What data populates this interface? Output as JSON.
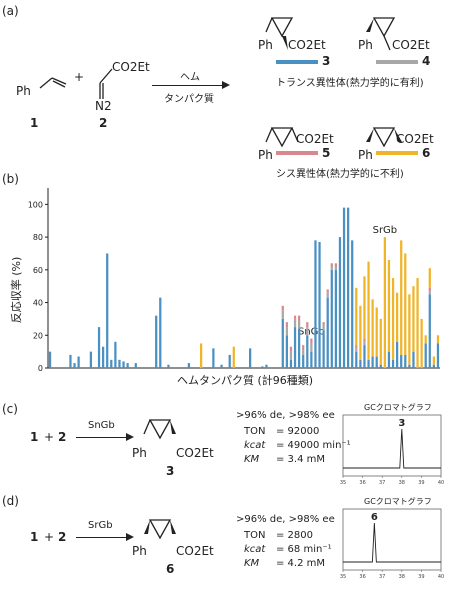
{
  "panels": {
    "a": "(a)",
    "b": "(b)",
    "c": "(c)",
    "d": "(d)"
  },
  "scheme": {
    "styrene_label": "Ph",
    "plus": "+",
    "diazo_top": "CO2Et",
    "diazo_n": "N2",
    "reactant1_num": "1",
    "reactant2_num": "2",
    "arrow_top": "ヘム",
    "arrow_bottom": "タンパク質",
    "products": [
      {
        "ph": "Ph",
        "ester": "CO2Et",
        "num": "3",
        "color": "#4a90c2"
      },
      {
        "ph": "Ph",
        "ester": "CO2Et",
        "num": "4",
        "color": "#a8a8a8"
      },
      {
        "ph": "Ph",
        "ester": "CO2Et",
        "num": "5",
        "color": "#d9898d"
      },
      {
        "ph": "Ph",
        "ester": "CO2Et",
        "num": "6",
        "color": "#f0b428"
      }
    ],
    "trans_label": "トランス異性体(熱力学的に有利)",
    "cis_label": "シス異性体(熱力学的に不利)"
  },
  "chart_data": {
    "type": "bar",
    "stacked": true,
    "ylabel": "反応収率 (%)",
    "xlabel": "ヘムタンパク質 (計96種類)",
    "ylim": [
      0,
      110
    ],
    "yticks": [
      0,
      20,
      40,
      60,
      80,
      100
    ],
    "annotations": [
      {
        "text": "SnGb",
        "index": 64
      },
      {
        "text": "SrGb",
        "index": 82
      }
    ],
    "series": [
      {
        "color": "#4a90c2",
        "values": [
          10,
          0,
          0,
          0,
          0,
          8,
          3,
          7,
          0,
          0,
          10,
          0,
          25,
          13,
          70,
          5,
          16,
          5,
          4,
          3,
          0,
          3,
          0,
          0,
          0,
          0,
          32,
          43,
          0,
          2,
          0,
          0,
          0,
          0,
          3,
          0,
          0,
          0,
          0,
          0,
          12,
          0,
          2,
          0,
          8,
          0,
          0,
          0,
          0,
          12,
          0,
          0,
          1,
          2,
          0,
          0,
          0,
          30,
          20,
          5,
          25,
          24,
          8,
          20,
          10,
          78,
          77,
          23,
          43,
          60,
          60,
          80,
          98,
          98,
          78,
          10,
          5,
          14,
          5,
          7,
          7,
          2,
          0,
          10,
          5,
          16,
          8,
          8,
          2,
          10,
          0,
          0,
          15,
          45,
          2,
          15
        ]
      },
      {
        "color": "#a8a8a8",
        "values": [
          0,
          0,
          0,
          0,
          0,
          0,
          0,
          0,
          0,
          0,
          0,
          0,
          0,
          0,
          0,
          0,
          0,
          0,
          0,
          0,
          0,
          0,
          0,
          0,
          0,
          0,
          0,
          0,
          0,
          0,
          0,
          0,
          0,
          0,
          0,
          0,
          0,
          0,
          0,
          0,
          0,
          0,
          0,
          0,
          0,
          0,
          0,
          0,
          0,
          0,
          0,
          0,
          0,
          0,
          0,
          0,
          0,
          5,
          5,
          5,
          5,
          5,
          3,
          5,
          5,
          0,
          0,
          3,
          3,
          2,
          2,
          0,
          0,
          0,
          0,
          2,
          0,
          2,
          0,
          0,
          0,
          0,
          0,
          0,
          0,
          0,
          0,
          0,
          0,
          0,
          0,
          0,
          0,
          2,
          0,
          0
        ]
      },
      {
        "color": "#d9898d",
        "values": [
          0,
          0,
          0,
          0,
          0,
          0,
          0,
          0,
          0,
          0,
          0,
          0,
          0,
          0,
          0,
          0,
          0,
          0,
          0,
          0,
          0,
          0,
          0,
          0,
          0,
          0,
          0,
          0,
          0,
          0,
          0,
          0,
          0,
          0,
          0,
          0,
          0,
          0,
          0,
          0,
          0,
          0,
          0,
          0,
          0,
          0,
          0,
          0,
          0,
          0,
          0,
          0,
          0,
          0,
          0,
          0,
          0,
          3,
          3,
          3,
          2,
          3,
          3,
          3,
          3,
          0,
          0,
          2,
          2,
          2,
          2,
          0,
          0,
          0,
          0,
          2,
          0,
          2,
          0,
          0,
          0,
          0,
          0,
          0,
          0,
          0,
          0,
          0,
          0,
          0,
          0,
          0,
          0,
          2,
          0,
          0
        ]
      },
      {
        "color": "#f0b428",
        "values": [
          0,
          0,
          0,
          0,
          0,
          0,
          0,
          0,
          0,
          0,
          0,
          0,
          0,
          0,
          0,
          0,
          0,
          0,
          0,
          0,
          0,
          0,
          0,
          0,
          0,
          0,
          0,
          0,
          0,
          0,
          0,
          0,
          0,
          0,
          0,
          0,
          0,
          15,
          0,
          0,
          0,
          0,
          0,
          0,
          0,
          13,
          0,
          0,
          0,
          0,
          0,
          0,
          0,
          0,
          0,
          0,
          0,
          0,
          0,
          0,
          0,
          0,
          0,
          0,
          0,
          0,
          0,
          0,
          0,
          0,
          0,
          0,
          0,
          0,
          0,
          35,
          33,
          38,
          60,
          35,
          30,
          28,
          80,
          56,
          50,
          30,
          70,
          62,
          43,
          40,
          55,
          30,
          5,
          12,
          5,
          5
        ]
      }
    ]
  },
  "panel_c": {
    "r1": "1",
    "plus": "+",
    "r2": "2",
    "enzyme": "SnGb",
    "ph": "Ph",
    "ester": "CO2Et",
    "product_num": "3",
    "selectivity": ">96% de, >98% ee",
    "ton_label": "TON",
    "ton_value": "= 92000",
    "kcat_label": "kcat",
    "kcat_value": "= 49000 min⁻¹",
    "km_label": "KM",
    "km_value": "= 3.4 mM",
    "gc_title": "GCクロマトグラフ",
    "gc_peak_label": "3",
    "gc_ticks": [
      "35",
      "36",
      "37",
      "38",
      "39",
      "40"
    ],
    "gc_peak_time": 38.0
  },
  "panel_d": {
    "r1": "1",
    "plus": "+",
    "r2": "2",
    "enzyme": "SrGb",
    "ph": "Ph",
    "ester": "CO2Et",
    "product_num": "6",
    "selectivity": ">96% de, >98% ee",
    "ton_label": "TON",
    "ton_value": "= 2800",
    "kcat_label": "kcat",
    "kcat_value": "= 68 min⁻¹",
    "km_label": "KM",
    "km_value": "= 4.2 mM",
    "gc_title": "GCクロマトグラフ",
    "gc_peak_label": "6",
    "gc_ticks": [
      "35",
      "36",
      "37",
      "38",
      "39",
      "40"
    ],
    "gc_peak_time": 36.6
  }
}
